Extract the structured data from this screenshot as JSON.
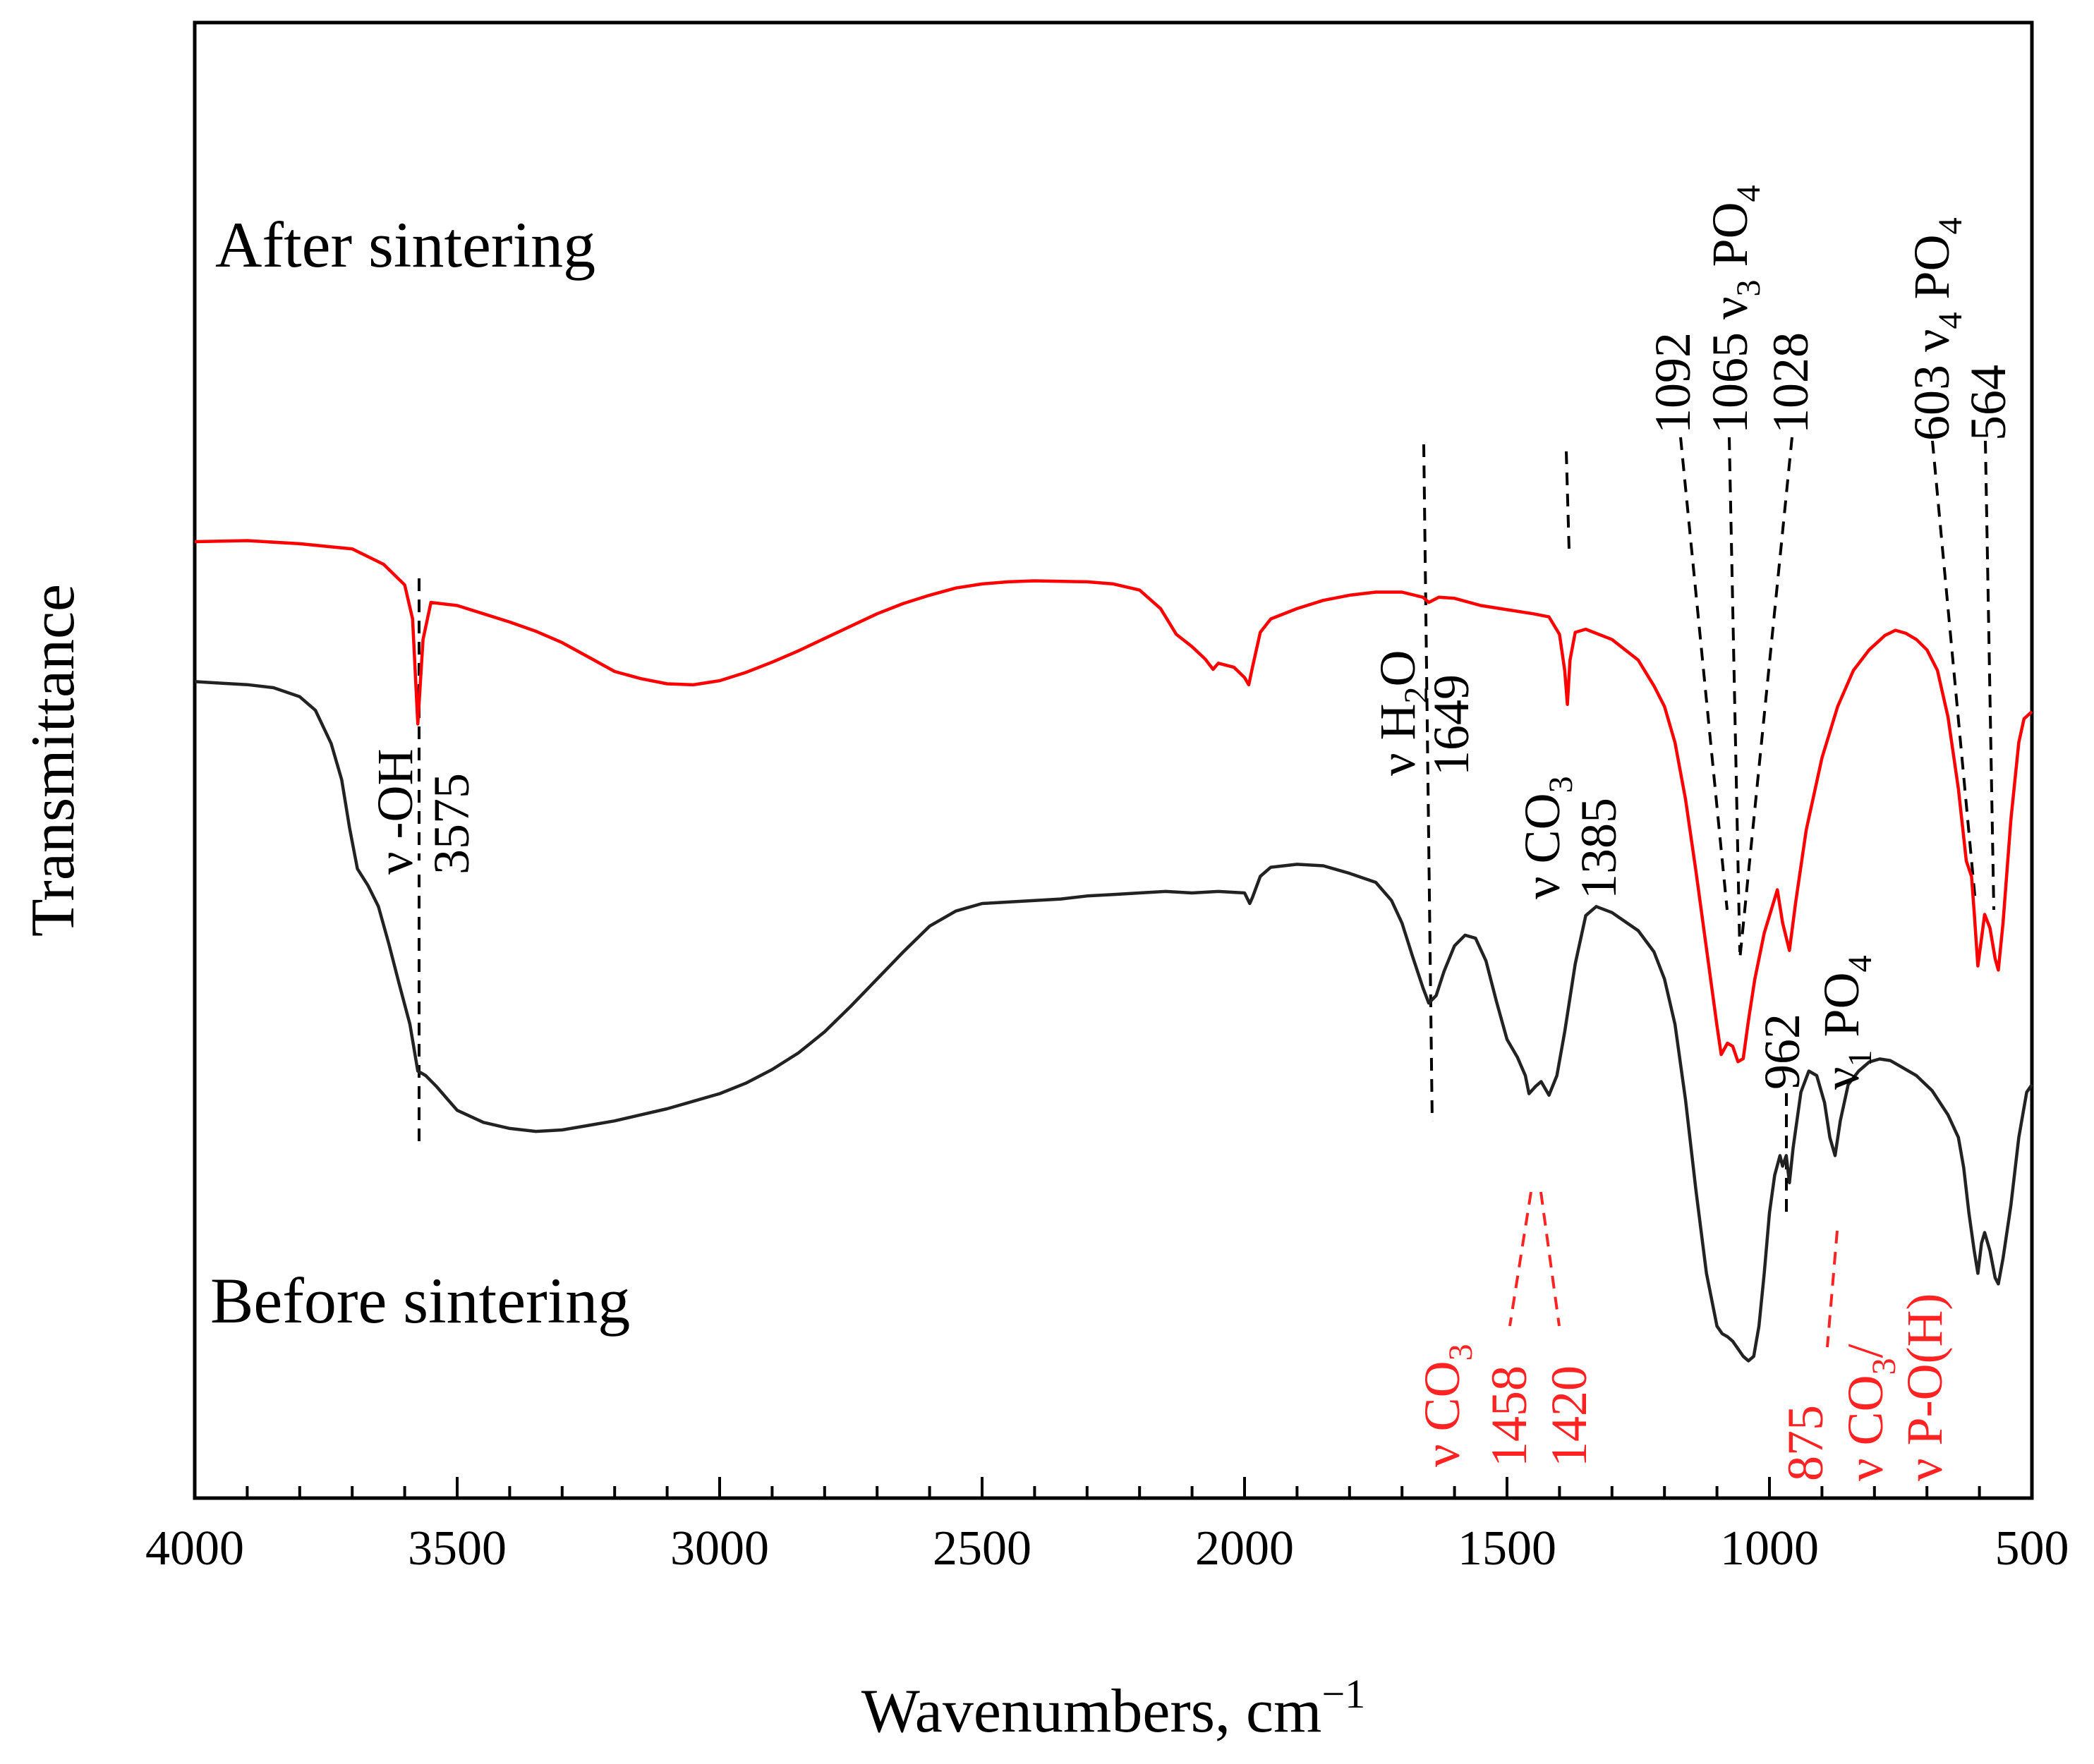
{
  "chart_data": {
    "type": "line",
    "xlabel": "Wavenumbers, cm",
    "xlabel_superscript": "−1",
    "ylabel": "Transmittance",
    "xlim": [
      4000,
      500
    ],
    "x_reversed": true,
    "ylim": [
      0,
      100
    ],
    "x_ticks": [
      "4000",
      "3500",
      "3000",
      "2500",
      "2000",
      "1500",
      "1000",
      "500"
    ],
    "grid": false,
    "series": [
      {
        "name": "After sintering",
        "color": "#ff0000",
        "points": [
          [
            4000,
            80.0
          ],
          [
            3900,
            80.1
          ],
          [
            3800,
            79.8
          ],
          [
            3700,
            79.3
          ],
          [
            3640,
            77.8
          ],
          [
            3600,
            75.8
          ],
          [
            3585,
            72.5
          ],
          [
            3575,
            62.3
          ],
          [
            3565,
            70.5
          ],
          [
            3550,
            74.1
          ],
          [
            3500,
            73.8
          ],
          [
            3450,
            73.0
          ],
          [
            3400,
            72.2
          ],
          [
            3350,
            71.3
          ],
          [
            3300,
            70.2
          ],
          [
            3250,
            68.8
          ],
          [
            3200,
            67.4
          ],
          [
            3150,
            66.7
          ],
          [
            3100,
            66.2
          ],
          [
            3050,
            66.1
          ],
          [
            3000,
            66.5
          ],
          [
            2950,
            67.3
          ],
          [
            2900,
            68.3
          ],
          [
            2850,
            69.4
          ],
          [
            2800,
            70.6
          ],
          [
            2750,
            71.8
          ],
          [
            2700,
            73.0
          ],
          [
            2650,
            74.0
          ],
          [
            2600,
            74.8
          ],
          [
            2550,
            75.5
          ],
          [
            2500,
            75.9
          ],
          [
            2450,
            76.1
          ],
          [
            2400,
            76.2
          ],
          [
            2300,
            76.1
          ],
          [
            2250,
            75.9
          ],
          [
            2200,
            75.3
          ],
          [
            2160,
            73.5
          ],
          [
            2130,
            71.0
          ],
          [
            2100,
            69.8
          ],
          [
            2075,
            68.6
          ],
          [
            2060,
            67.6
          ],
          [
            2050,
            68.2
          ],
          [
            2020,
            67.8
          ],
          [
            2000,
            66.8
          ],
          [
            1992,
            66.1
          ],
          [
            1985,
            67.8
          ],
          [
            1970,
            71.2
          ],
          [
            1950,
            72.5
          ],
          [
            1900,
            73.5
          ],
          [
            1850,
            74.3
          ],
          [
            1800,
            74.8
          ],
          [
            1750,
            75.1
          ],
          [
            1700,
            75.1
          ],
          [
            1660,
            74.6
          ],
          [
            1649,
            74.1
          ],
          [
            1630,
            74.6
          ],
          [
            1600,
            74.5
          ],
          [
            1550,
            73.8
          ],
          [
            1500,
            73.4
          ],
          [
            1450,
            73.0
          ],
          [
            1420,
            72.7
          ],
          [
            1400,
            71.0
          ],
          [
            1390,
            67.5
          ],
          [
            1385,
            64.2
          ],
          [
            1380,
            68.5
          ],
          [
            1370,
            71.2
          ],
          [
            1350,
            71.5
          ],
          [
            1300,
            70.5
          ],
          [
            1250,
            68.5
          ],
          [
            1220,
            66.0
          ],
          [
            1200,
            64.0
          ],
          [
            1180,
            60.5
          ],
          [
            1160,
            55.0
          ],
          [
            1140,
            48.0
          ],
          [
            1120,
            40.5
          ],
          [
            1100,
            33.0
          ],
          [
            1092,
            30.2
          ],
          [
            1080,
            31.3
          ],
          [
            1070,
            31.0
          ],
          [
            1060,
            29.5
          ],
          [
            1050,
            29.8
          ],
          [
            1040,
            33.5
          ],
          [
            1028,
            37.5
          ],
          [
            1010,
            42.0
          ],
          [
            995,
            44.5
          ],
          [
            985,
            46.2
          ],
          [
            975,
            43.0
          ],
          [
            962,
            40.3
          ],
          [
            950,
            45.0
          ],
          [
            930,
            52.0
          ],
          [
            900,
            59.0
          ],
          [
            870,
            64.0
          ],
          [
            840,
            67.5
          ],
          [
            810,
            69.5
          ],
          [
            780,
            70.9
          ],
          [
            760,
            71.4
          ],
          [
            740,
            71.1
          ],
          [
            720,
            70.5
          ],
          [
            700,
            69.5
          ],
          [
            680,
            67.5
          ],
          [
            660,
            63.0
          ],
          [
            640,
            56.0
          ],
          [
            625,
            49.0
          ],
          [
            615,
            47.5
          ],
          [
            610,
            44.0
          ],
          [
            603,
            38.8
          ],
          [
            596,
            41.5
          ],
          [
            590,
            43.8
          ],
          [
            580,
            42.5
          ],
          [
            570,
            39.5
          ],
          [
            564,
            38.4
          ],
          [
            555,
            43.0
          ],
          [
            540,
            53.0
          ],
          [
            525,
            60.5
          ],
          [
            515,
            62.8
          ],
          [
            500,
            63.5
          ]
        ]
      },
      {
        "name": "Before sintering",
        "color": "#222222",
        "points": [
          [
            4000,
            49.7
          ],
          [
            3950,
            49.6
          ],
          [
            3900,
            49.5
          ],
          [
            3850,
            49.3
          ],
          [
            3800,
            48.7
          ],
          [
            3770,
            47.8
          ],
          [
            3740,
            45.6
          ],
          [
            3720,
            43.2
          ],
          [
            3705,
            40.0
          ],
          [
            3690,
            37.3
          ],
          [
            3670,
            36.2
          ],
          [
            3650,
            34.8
          ],
          [
            3630,
            32.3
          ],
          [
            3610,
            29.6
          ],
          [
            3590,
            27.0
          ],
          [
            3575,
            23.9
          ],
          [
            3560,
            23.6
          ],
          [
            3540,
            22.9
          ],
          [
            3520,
            22.1
          ],
          [
            3500,
            21.3
          ],
          [
            3450,
            20.5
          ],
          [
            3400,
            20.1
          ],
          [
            3350,
            19.9
          ],
          [
            3300,
            20.0
          ],
          [
            3250,
            20.3
          ],
          [
            3200,
            20.6
          ],
          [
            3150,
            21.0
          ],
          [
            3100,
            21.4
          ],
          [
            3050,
            21.9
          ],
          [
            3000,
            22.4
          ],
          [
            2950,
            23.1
          ],
          [
            2900,
            24.0
          ],
          [
            2850,
            25.1
          ],
          [
            2800,
            26.5
          ],
          [
            2750,
            28.2
          ],
          [
            2700,
            30.0
          ],
          [
            2650,
            31.8
          ],
          [
            2600,
            33.5
          ],
          [
            2550,
            34.5
          ],
          [
            2500,
            35.0
          ],
          [
            2450,
            35.1
          ],
          [
            2400,
            35.2
          ],
          [
            2350,
            35.3
          ],
          [
            2300,
            35.5
          ],
          [
            2250,
            35.6
          ],
          [
            2200,
            35.7
          ],
          [
            2150,
            35.8
          ],
          [
            2100,
            35.7
          ],
          [
            2050,
            35.8
          ],
          [
            2000,
            35.7
          ],
          [
            1990,
            35.0
          ],
          [
            1985,
            35.4
          ],
          [
            1970,
            36.8
          ],
          [
            1950,
            37.4
          ],
          [
            1900,
            37.6
          ],
          [
            1850,
            37.5
          ],
          [
            1800,
            37.0
          ],
          [
            1750,
            36.4
          ],
          [
            1720,
            35.2
          ],
          [
            1700,
            33.7
          ],
          [
            1680,
            31.5
          ],
          [
            1660,
            29.4
          ],
          [
            1649,
            28.4
          ],
          [
            1635,
            28.9
          ],
          [
            1620,
            30.5
          ],
          [
            1600,
            32.2
          ],
          [
            1580,
            32.9
          ],
          [
            1560,
            32.7
          ],
          [
            1540,
            31.2
          ],
          [
            1520,
            28.5
          ],
          [
            1500,
            26.0
          ],
          [
            1480,
            24.8
          ],
          [
            1465,
            23.6
          ],
          [
            1458,
            22.4
          ],
          [
            1445,
            22.9
          ],
          [
            1435,
            23.2
          ],
          [
            1420,
            22.3
          ],
          [
            1405,
            23.6
          ],
          [
            1390,
            26.5
          ],
          [
            1370,
            31.0
          ],
          [
            1350,
            34.2
          ],
          [
            1330,
            34.8
          ],
          [
            1300,
            34.4
          ],
          [
            1250,
            33.2
          ],
          [
            1220,
            31.8
          ],
          [
            1200,
            30.0
          ],
          [
            1180,
            27.0
          ],
          [
            1160,
            22.0
          ],
          [
            1140,
            16.0
          ],
          [
            1120,
            10.5
          ],
          [
            1100,
            7.0
          ],
          [
            1090,
            6.5
          ],
          [
            1080,
            6.3
          ],
          [
            1070,
            6.0
          ],
          [
            1060,
            5.5
          ],
          [
            1050,
            5.0
          ],
          [
            1040,
            4.7
          ],
          [
            1030,
            5.0
          ],
          [
            1020,
            7.0
          ],
          [
            1010,
            10.5
          ],
          [
            1000,
            14.5
          ],
          [
            990,
            17.0
          ],
          [
            980,
            18.3
          ],
          [
            975,
            17.6
          ],
          [
            968,
            18.3
          ],
          [
            962,
            16.5
          ],
          [
            955,
            18.8
          ],
          [
            940,
            22.5
          ],
          [
            925,
            23.9
          ],
          [
            910,
            23.6
          ],
          [
            895,
            21.8
          ],
          [
            885,
            19.5
          ],
          [
            875,
            18.3
          ],
          [
            865,
            20.6
          ],
          [
            850,
            23.0
          ],
          [
            830,
            23.9
          ],
          [
            810,
            24.5
          ],
          [
            790,
            24.7
          ],
          [
            770,
            24.6
          ],
          [
            750,
            24.2
          ],
          [
            720,
            23.6
          ],
          [
            690,
            22.6
          ],
          [
            660,
            21.0
          ],
          [
            640,
            19.5
          ],
          [
            630,
            17.5
          ],
          [
            620,
            14.5
          ],
          [
            610,
            12.0
          ],
          [
            603,
            10.5
          ],
          [
            596,
            12.5
          ],
          [
            590,
            13.2
          ],
          [
            580,
            12.0
          ],
          [
            570,
            10.2
          ],
          [
            564,
            9.8
          ],
          [
            555,
            11.5
          ],
          [
            540,
            15.0
          ],
          [
            525,
            19.5
          ],
          [
            510,
            22.5
          ],
          [
            500,
            23.0
          ]
        ]
      }
    ],
    "series_labels": [
      {
        "text": "After sintering",
        "series": 0
      },
      {
        "text": "Before sintering",
        "series": 1
      }
    ],
    "annotations": [
      {
        "id": "oh",
        "x": 3575,
        "lines": [
          {
            "text": "ν -OH"
          },
          {
            "text": "3575"
          }
        ],
        "color": "#000000"
      },
      {
        "id": "h2o",
        "x": 1649,
        "lines": [
          {
            "text": "ν H",
            "sub": "2",
            "tail": "O"
          },
          {
            "text": "1649"
          }
        ],
        "color": "#000000"
      },
      {
        "id": "co3a",
        "x": 1385,
        "lines": [
          {
            "text": "ν CO",
            "sub": "3"
          },
          {
            "text": "1385"
          }
        ],
        "color": "#000000"
      },
      {
        "id": "v3",
        "lines": [
          {
            "text": "1092"
          },
          {
            "text": "1065 ν",
            "sub": "3",
            "tail": " PO",
            "sub2": "4"
          },
          {
            "text": "1028"
          }
        ],
        "color": "#000000"
      },
      {
        "id": "v4",
        "lines": [
          {
            "text": "603 ν",
            "sub": "4",
            "tail": " PO",
            "sub2": "4"
          },
          {
            "text": "564"
          }
        ],
        "color": "#000000"
      },
      {
        "id": "v1",
        "lines": [
          {
            "text": "962"
          },
          {
            "text": "ν",
            "sub": "1",
            "tail": " PO",
            "sub2": "4"
          }
        ],
        "color": "#000000"
      },
      {
        "id": "co3b",
        "lines": [
          {
            "text": "ν CO",
            "sub": "3"
          },
          {
            "text": "1458"
          },
          {
            "text": "1420"
          }
        ],
        "color": "#ff2222"
      },
      {
        "id": "co3c",
        "lines": [
          {
            "text": "875"
          },
          {
            "text": "ν CO",
            "sub": "3",
            "tail": "/"
          },
          {
            "text": "ν P-O(H)"
          }
        ],
        "color": "#ff2222"
      }
    ]
  }
}
